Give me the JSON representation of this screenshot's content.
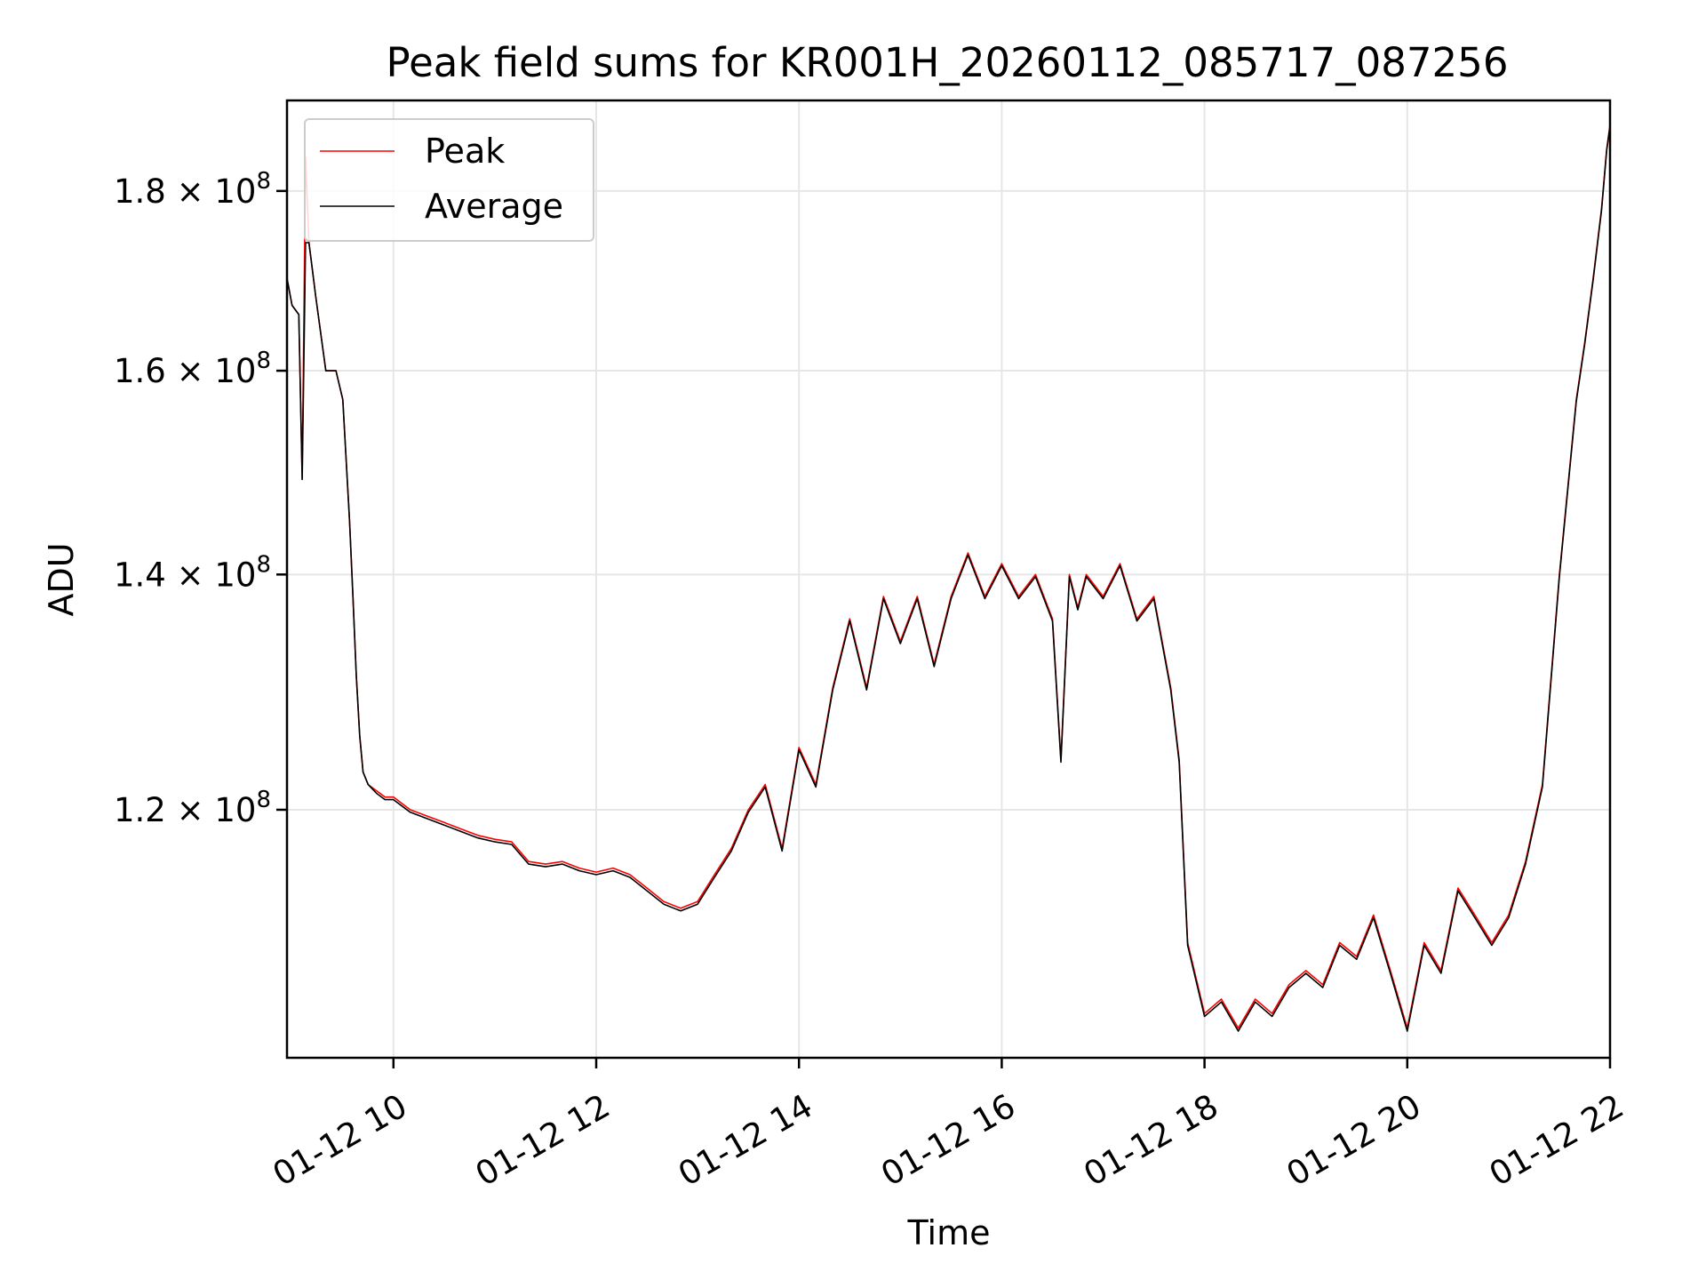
{
  "chart_data": {
    "type": "line",
    "title": "Peak field sums for KR001H_20260112_085717_087256",
    "xlabel": "Time",
    "ylabel": "ADU",
    "x_is_time": true,
    "xlim": [
      "2026-01-12T08:57",
      "2026-01-12T22:00"
    ],
    "ylim": [
      102000000.0,
      191000000.0
    ],
    "y_scale": "log",
    "grid": true,
    "legend_position": "top-left",
    "x_ticks": [
      {
        "value": "2026-01-12T10:00",
        "label": "01-12 10"
      },
      {
        "value": "2026-01-12T12:00",
        "label": "01-12 12"
      },
      {
        "value": "2026-01-12T14:00",
        "label": "01-12 14"
      },
      {
        "value": "2026-01-12T16:00",
        "label": "01-12 16"
      },
      {
        "value": "2026-01-12T18:00",
        "label": "01-12 18"
      },
      {
        "value": "2026-01-12T20:00",
        "label": "01-12 20"
      },
      {
        "value": "2026-01-12T22:00",
        "label": "01-12 22"
      }
    ],
    "y_ticks": [
      {
        "value": 120000000,
        "mantissa": "1.2",
        "label": "1.2 × 10^8"
      },
      {
        "value": 140000000,
        "mantissa": "1.4",
        "label": "1.4 × 10^8"
      },
      {
        "value": 160000000,
        "mantissa": "1.6",
        "label": "1.6 × 10^8"
      },
      {
        "value": 180000000,
        "mantissa": "1.8",
        "label": "1.8 × 10^8"
      }
    ],
    "series": [
      {
        "name": "Peak",
        "color": "#ff0000",
        "x": [
          "08:57",
          "09:00",
          "09:04",
          "09:06",
          "09:08",
          "09:10",
          "09:12",
          "09:14",
          "09:20",
          "09:26",
          "09:30",
          "09:34",
          "09:36",
          "09:38",
          "09:40",
          "09:42",
          "09:45",
          "09:50",
          "09:55",
          "10:00",
          "10:10",
          "10:20",
          "10:30",
          "10:40",
          "10:50",
          "11:00",
          "11:10",
          "11:20",
          "11:30",
          "11:40",
          "11:50",
          "12:00",
          "12:10",
          "12:20",
          "12:30",
          "12:40",
          "12:50",
          "13:00",
          "13:10",
          "13:20",
          "13:30",
          "13:40",
          "13:50",
          "14:00",
          "14:10",
          "14:20",
          "14:30",
          "14:40",
          "14:50",
          "15:00",
          "15:10",
          "15:20",
          "15:30",
          "15:40",
          "15:50",
          "16:00",
          "16:10",
          "16:20",
          "16:30",
          "16:35",
          "16:40",
          "16:45",
          "16:50",
          "17:00",
          "17:10",
          "17:20",
          "17:30",
          "17:40",
          "17:45",
          "17:50",
          "18:00",
          "18:10",
          "18:20",
          "18:30",
          "18:40",
          "18:50",
          "19:00",
          "19:10",
          "19:20",
          "19:30",
          "19:40",
          "19:50",
          "20:00",
          "20:10",
          "20:20",
          "20:30",
          "20:40",
          "20:50",
          "21:00",
          "21:10",
          "21:20",
          "21:30",
          "21:40",
          "21:45",
          "21:50",
          "21:55",
          "21:58",
          "22:00"
        ],
        "y": [
          170000000.0,
          167000000.0,
          166000000.0,
          149000000.0,
          184000000.0,
          174000000.0,
          171000000.0,
          168000000.0,
          160000000.0,
          160000000.0,
          157000000.0,
          145000000.0,
          138000000.0,
          131000000.0,
          126000000.0,
          123000000.0,
          122000000.0,
          121500000.0,
          121000000.0,
          121000000.0,
          120000000.0,
          119500000.0,
          119000000.0,
          118500000.0,
          118000000.0,
          117700000.0,
          117500000.0,
          116000000.0,
          115800000.0,
          116000000.0,
          115500000.0,
          115200000.0,
          115500000.0,
          115000000.0,
          114000000.0,
          113000000.0,
          112500000.0,
          113000000.0,
          115000000.0,
          117000000.0,
          120000000.0,
          122000000.0,
          117000000.0,
          125000000.0,
          122000000.0,
          130000000.0,
          136000000.0,
          130000000.0,
          138000000.0,
          134000000.0,
          138000000.0,
          132000000.0,
          138000000.0,
          142000000.0,
          138000000.0,
          141000000.0,
          138000000.0,
          140000000.0,
          136000000.0,
          124000000.0,
          140000000.0,
          137000000.0,
          140000000.0,
          138000000.0,
          141000000.0,
          136000000.0,
          138000000.0,
          130000000.0,
          124000000.0,
          110000000.0,
          105000000.0,
          106000000.0,
          104000000.0,
          106000000.0,
          105000000.0,
          107000000.0,
          108000000.0,
          107000000.0,
          110000000.0,
          109000000.0,
          112000000.0,
          108000000.0,
          104000000.0,
          110000000.0,
          108000000.0,
          114000000.0,
          112000000.0,
          110000000.0,
          112000000.0,
          116000000.0,
          122000000.0,
          140000000.0,
          157000000.0,
          163000000.0,
          170000000.0,
          178000000.0,
          185000000.0,
          188000000.0
        ]
      },
      {
        "name": "Average",
        "color": "#000000",
        "x": [
          "08:57",
          "09:00",
          "09:04",
          "09:06",
          "09:08",
          "09:10",
          "09:12",
          "09:14",
          "09:20",
          "09:26",
          "09:30",
          "09:34",
          "09:36",
          "09:38",
          "09:40",
          "09:42",
          "09:45",
          "09:50",
          "09:55",
          "10:00",
          "10:10",
          "10:20",
          "10:30",
          "10:40",
          "10:50",
          "11:00",
          "11:10",
          "11:20",
          "11:30",
          "11:40",
          "11:50",
          "12:00",
          "12:10",
          "12:20",
          "12:30",
          "12:40",
          "12:50",
          "13:00",
          "13:10",
          "13:20",
          "13:30",
          "13:40",
          "13:50",
          "14:00",
          "14:10",
          "14:20",
          "14:30",
          "14:40",
          "14:50",
          "15:00",
          "15:10",
          "15:20",
          "15:30",
          "15:40",
          "15:50",
          "16:00",
          "16:10",
          "16:20",
          "16:30",
          "16:35",
          "16:40",
          "16:45",
          "16:50",
          "17:00",
          "17:10",
          "17:20",
          "17:30",
          "17:40",
          "17:45",
          "17:50",
          "18:00",
          "18:10",
          "18:20",
          "18:30",
          "18:40",
          "18:50",
          "19:00",
          "19:10",
          "19:20",
          "19:30",
          "19:40",
          "19:50",
          "20:00",
          "20:10",
          "20:20",
          "20:30",
          "20:40",
          "20:50",
          "21:00",
          "21:10",
          "21:20",
          "21:30",
          "21:40",
          "21:45",
          "21:50",
          "21:55",
          "21:58",
          "22:00"
        ],
        "y": [
          170000000.0,
          167000000.0,
          166000000.0,
          149000000.0,
          174000000.0,
          174000000.0,
          171000000.0,
          168000000.0,
          160000000.0,
          160000000.0,
          157000000.0,
          145000000.0,
          138000000.0,
          131000000.0,
          126000000.0,
          123000000.0,
          122000000.0,
          121300000.0,
          120800000.0,
          120800000.0,
          119800000.0,
          119300000.0,
          118800000.0,
          118300000.0,
          117800000.0,
          117500000.0,
          117300000.0,
          115800000.0,
          115600000.0,
          115800000.0,
          115300000.0,
          115000000.0,
          115300000.0,
          114800000.0,
          113800000.0,
          112800000.0,
          112300000.0,
          112800000.0,
          114800000.0,
          116800000.0,
          119800000.0,
          121800000.0,
          116800000.0,
          124800000.0,
          121800000.0,
          129800000.0,
          135800000.0,
          129800000.0,
          137800000.0,
          133800000.0,
          137800000.0,
          131800000.0,
          137800000.0,
          141800000.0,
          137800000.0,
          140800000.0,
          137800000.0,
          139800000.0,
          135800000.0,
          123800000.0,
          139800000.0,
          136800000.0,
          139800000.0,
          137800000.0,
          140800000.0,
          135800000.0,
          137800000.0,
          129800000.0,
          123800000.0,
          109800000.0,
          104800000.0,
          105800000.0,
          103800000.0,
          105800000.0,
          104800000.0,
          106800000.0,
          107800000.0,
          106800000.0,
          109800000.0,
          108800000.0,
          111800000.0,
          107800000.0,
          103800000.0,
          109800000.0,
          107800000.0,
          113800000.0,
          111800000.0,
          109800000.0,
          111800000.0,
          115800000.0,
          121800000.0,
          139800000.0,
          156800000.0,
          162800000.0,
          169800000.0,
          177800000.0,
          184800000.0,
          187800000.0
        ]
      }
    ]
  }
}
